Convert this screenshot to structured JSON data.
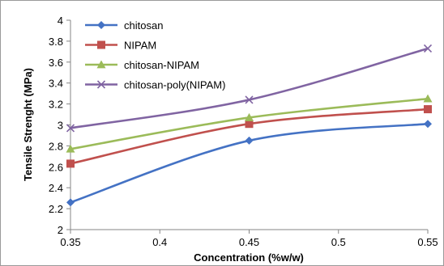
{
  "chart_data": {
    "type": "line",
    "title": "",
    "xlabel": "Concentration (%w/w)",
    "ylabel": "Tensile Strenght (MPa)",
    "xlim": [
      0.35,
      0.55
    ],
    "ylim": [
      2,
      4
    ],
    "x_ticks": [
      "0.35",
      "0.4",
      "0.45",
      "0.5",
      "0.55"
    ],
    "y_ticks": [
      "2",
      "2.2",
      "2.4",
      "2.6",
      "2.8",
      "3",
      "3.2",
      "3.4",
      "3.6",
      "3.8",
      "4"
    ],
    "x": [
      0.35,
      0.45,
      0.55
    ],
    "grid": false,
    "smooth": true,
    "legend_position": "top-left",
    "series": [
      {
        "name": "chitosan",
        "values": [
          2.26,
          2.85,
          3.01
        ],
        "color": "#4472C4",
        "marker": "diamond"
      },
      {
        "name": "NIPAM",
        "values": [
          2.63,
          3.01,
          3.15
        ],
        "color": "#C0504D",
        "marker": "square"
      },
      {
        "name": "chitosan-NIPAM",
        "values": [
          2.77,
          3.07,
          3.25
        ],
        "color": "#9BBB59",
        "marker": "triangle"
      },
      {
        "name": "chitosan-poly(NIPAM)",
        "values": [
          2.97,
          3.24,
          3.73
        ],
        "color": "#8064A2",
        "marker": "cross"
      }
    ]
  }
}
